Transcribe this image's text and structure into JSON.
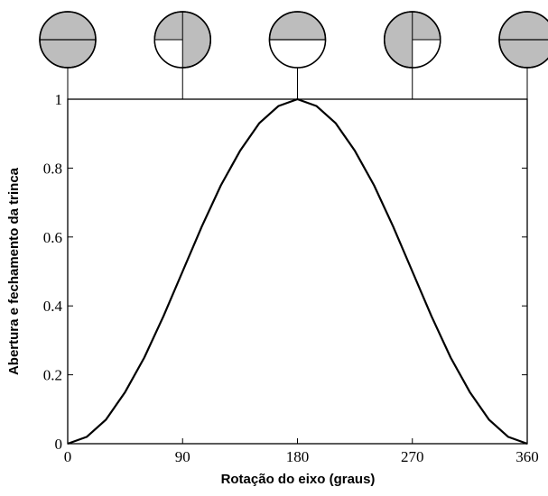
{
  "chart_data": {
    "type": "line",
    "xlabel": "Rotação do eixo (graus)",
    "ylabel": "Abertura e fechamento da trinca",
    "x": [
      0,
      15,
      30,
      45,
      60,
      75,
      90,
      105,
      120,
      135,
      150,
      165,
      180,
      195,
      210,
      225,
      240,
      255,
      270,
      285,
      300,
      315,
      330,
      345,
      360
    ],
    "series": [
      {
        "color": "#000000",
        "values": [
          0,
          0.02,
          0.07,
          0.15,
          0.25,
          0.37,
          0.5,
          0.63,
          0.75,
          0.85,
          0.93,
          0.98,
          1,
          0.98,
          0.93,
          0.85,
          0.75,
          0.63,
          0.5,
          0.37,
          0.25,
          0.15,
          0.07,
          0.02,
          0
        ]
      }
    ],
    "xlim": [
      0,
      360
    ],
    "xticks": [
      0,
      90,
      180,
      270,
      360
    ],
    "ylim": [
      0,
      1
    ],
    "yticks": [
      0,
      0.2,
      0.4,
      0.6,
      0.8,
      1
    ]
  }
}
